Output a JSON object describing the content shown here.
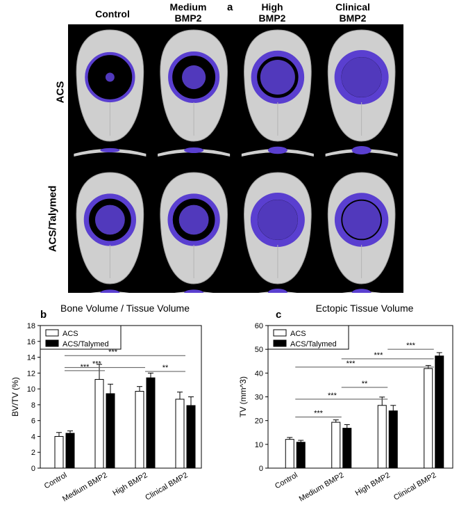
{
  "figure": {
    "panel_a": "a",
    "panel_b": "b",
    "panel_c": "c",
    "column_headers": [
      "Control",
      "Medium\nBMP2",
      "High\nBMP2",
      "Clinical\nBMP2"
    ],
    "row_labels": [
      "ACS",
      "ACS/Talymed"
    ]
  },
  "colors": {
    "defect_fill": "#5a3fd0",
    "bone": "#cfcfcf",
    "background": "#000000",
    "series_acs": "#ffffff",
    "series_talymed": "#000000"
  },
  "chart_data": [
    {
      "type": "bar",
      "title": "Bone Volume / Tissue Volume",
      "xlabel": "",
      "ylabel": "BV/TV (%)",
      "categories": [
        "Control",
        "Medium BMP2",
        "High BMP2",
        "Clinical BMP2"
      ],
      "ylim": [
        0,
        18
      ],
      "yticks": [
        0,
        2,
        4,
        6,
        8,
        10,
        12,
        14,
        16,
        18
      ],
      "legend_position": "top-left",
      "series": [
        {
          "name": "ACS",
          "values": [
            4.0,
            11.2,
            9.7,
            8.7
          ],
          "errors": [
            0.5,
            1.9,
            0.6,
            0.9
          ]
        },
        {
          "name": "ACS/Talymed",
          "values": [
            4.4,
            9.4,
            11.4,
            7.9
          ],
          "errors": [
            0.3,
            1.2,
            0.6,
            1.1
          ]
        }
      ],
      "significance": [
        {
          "label": "***",
          "from": "Control",
          "to": "Medium BMP2",
          "y": 12.3
        },
        {
          "label": "***",
          "from": "Control",
          "to": "High BMP2",
          "y": 12.7
        },
        {
          "label": "***",
          "from": "Control",
          "to": "Clinical BMP2",
          "y": 14.2
        },
        {
          "label": "**",
          "from": "High BMP2",
          "to": "Clinical BMP2",
          "y": 12.2
        }
      ]
    },
    {
      "type": "bar",
      "title": "Ectopic Tissue Volume",
      "xlabel": "",
      "ylabel": "TV (mm^3)",
      "categories": [
        "Control",
        "Medium BMP2",
        "High BMP2",
        "Clinical BMP2"
      ],
      "ylim": [
        0,
        60
      ],
      "yticks": [
        0,
        10,
        20,
        30,
        40,
        50,
        60
      ],
      "legend_position": "top-left",
      "series": [
        {
          "name": "ACS",
          "values": [
            12.1,
            19.3,
            26.4,
            41.9
          ],
          "errors": [
            0.8,
            1.0,
            3.5,
            1.3
          ]
        },
        {
          "name": "ACS/Talymed",
          "values": [
            10.9,
            16.8,
            24.1,
            47.2
          ],
          "errors": [
            0.8,
            1.5,
            2.3,
            1.4
          ]
        }
      ],
      "significance": [
        {
          "label": "***",
          "from": "Control",
          "to": "Medium BMP2",
          "y": 21.5
        },
        {
          "label": "***",
          "from": "Control",
          "to": "High BMP2",
          "y": 29.0
        },
        {
          "label": "**",
          "from": "Medium BMP2",
          "to": "High BMP2",
          "y": 34.0
        },
        {
          "label": "***",
          "from": "Control",
          "to": "Clinical BMP2",
          "y": 42.5
        },
        {
          "label": "***",
          "from": "Medium BMP2",
          "to": "Clinical BMP2",
          "y": 46.0
        },
        {
          "label": "***",
          "from": "High BMP2",
          "to": "Clinical BMP2",
          "y": 50.0
        }
      ]
    }
  ]
}
